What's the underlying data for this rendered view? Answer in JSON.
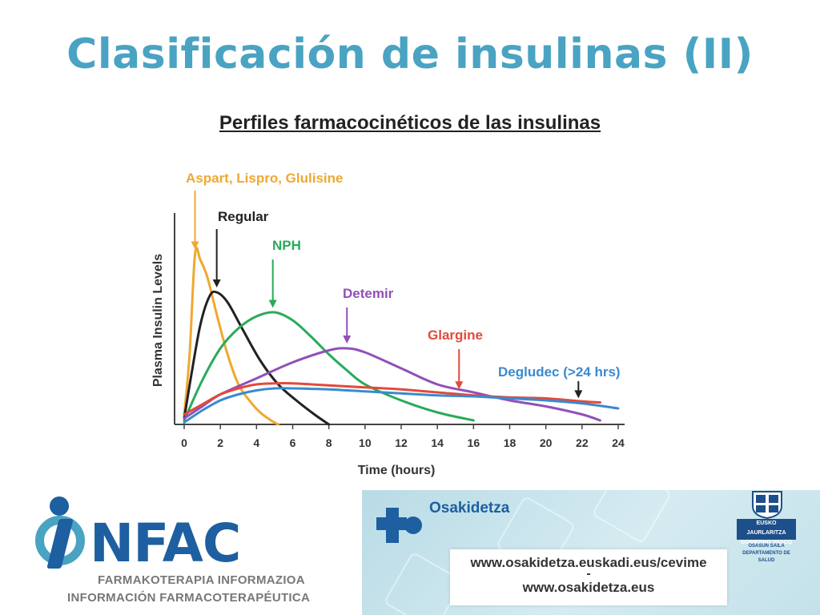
{
  "slide": {
    "title": "Clasificación de insulinas (II)",
    "subtitle": "Perfiles farmacocinéticos de las insulinas"
  },
  "chart_data": {
    "type": "line",
    "title": "",
    "xlabel": "Time (hours)",
    "ylabel": "Plasma Insulin Levels",
    "xlim": [
      0,
      24
    ],
    "x_ticks": [
      0,
      2,
      4,
      6,
      8,
      10,
      12,
      14,
      16,
      18,
      20,
      22,
      24
    ],
    "ylim": [
      0,
      10
    ],
    "y_ticks_shown": false,
    "grid": false,
    "legend": "annotations-with-arrows",
    "series": [
      {
        "name": "Aspart, Lispro, Glulisine",
        "color": "#f0a830",
        "x": [
          0,
          0.3,
          0.6,
          0.9,
          1.3,
          1.8,
          2.4,
          3.0,
          3.6,
          4.2,
          4.8,
          5.2
        ],
        "y": [
          0.5,
          3.5,
          8.5,
          8.2,
          7.3,
          5.5,
          3.5,
          2.0,
          1.2,
          0.6,
          0.2,
          0.0
        ]
      },
      {
        "name": "Regular",
        "color": "#222222",
        "x": [
          0,
          0.4,
          0.9,
          1.4,
          1.8,
          2.4,
          3.2,
          4.2,
          5.2,
          6.2,
          7.2,
          8.0
        ],
        "y": [
          0.3,
          2.5,
          5.0,
          6.4,
          6.6,
          6.1,
          4.8,
          3.2,
          2.0,
          1.2,
          0.5,
          0.0
        ]
      },
      {
        "name": "NPH",
        "color": "#2aaa5a",
        "x": [
          0,
          1,
          2,
          3,
          4,
          5,
          6,
          7,
          8,
          9,
          10,
          12,
          14,
          16
        ],
        "y": [
          0.2,
          2.2,
          3.8,
          4.8,
          5.4,
          5.6,
          5.2,
          4.4,
          3.5,
          2.7,
          2.0,
          1.2,
          0.6,
          0.2
        ]
      },
      {
        "name": "Detemir",
        "color": "#9050b8",
        "x": [
          0,
          1,
          2,
          4,
          6,
          8,
          9,
          10,
          12,
          14,
          16,
          18,
          20,
          22,
          23
        ],
        "y": [
          0.3,
          0.9,
          1.5,
          2.3,
          3.1,
          3.7,
          3.8,
          3.6,
          2.8,
          2.0,
          1.6,
          1.2,
          0.9,
          0.5,
          0.2
        ]
      },
      {
        "name": "Glargine",
        "color": "#e24a3a",
        "x": [
          0,
          1,
          2,
          3,
          4,
          5,
          6,
          8,
          10,
          12,
          14,
          16,
          18,
          20,
          22,
          23
        ],
        "y": [
          0.5,
          1.0,
          1.5,
          1.8,
          2.0,
          2.05,
          2.05,
          1.95,
          1.85,
          1.75,
          1.6,
          1.45,
          1.35,
          1.3,
          1.15,
          1.1
        ]
      },
      {
        "name": "Degludec (>24 hrs)",
        "color": "#3a8ad0",
        "x": [
          0,
          1,
          2,
          3,
          4,
          5,
          6,
          8,
          10,
          12,
          14,
          16,
          18,
          20,
          22,
          24
        ],
        "y": [
          0.1,
          0.7,
          1.2,
          1.5,
          1.7,
          1.8,
          1.8,
          1.75,
          1.65,
          1.55,
          1.45,
          1.4,
          1.3,
          1.2,
          1.05,
          0.8
        ]
      }
    ]
  },
  "footer": {
    "infac": {
      "word": "NFAC",
      "line1": "FARMAKOTERAPIA INFORMAZIOA",
      "line2": "INFORMACIÓN FARMACOTERAPÉUTICA"
    },
    "osakidetza": {
      "name": "Osakidetza",
      "url1": "www.osakidetza.euskadi.eus/cevime",
      "separator": "-",
      "url2": "www.osakidetza.eus"
    },
    "gobierno": {
      "box_line1": "EUSKO JAURLARITZA",
      "box_line2": "GOBIERNO VASCO",
      "sub_line1": "OSASUN SAILA",
      "sub_line2": "DEPARTAMENTO DE SALUD"
    }
  }
}
